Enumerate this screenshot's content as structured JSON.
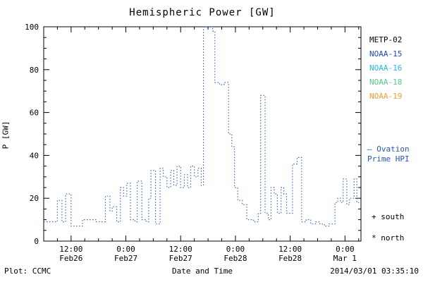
{
  "title": "Hemispheric Power [GW]",
  "ylabel": "P [GW]",
  "xlabel": "Date and Time",
  "footer": {
    "left": "Plot: CCMC",
    "right": "2014/03/01 03:35:10"
  },
  "legend": [
    {
      "label": "METP-02",
      "color": "#000000"
    },
    {
      "label": "NOAA-15",
      "color": "#2244cc"
    },
    {
      "label": "NOAA-16",
      "color": "#22bbee"
    },
    {
      "label": "NOAA-18",
      "color": "#55cc88"
    },
    {
      "label": "NOAA-19",
      "color": "#ff9933"
    }
  ],
  "ovation": {
    "line1": "— Ovation",
    "line2": "Prime HPI",
    "color": "#2255cc"
  },
  "markers": {
    "south": "+ south",
    "north": "* north"
  },
  "chart_data": {
    "type": "line",
    "step": true,
    "line_style": "dotted",
    "line_color": "#3a66cc",
    "title": "Hemispheric Power [GW]",
    "xlabel": "Date and Time",
    "ylabel": "P [GW]",
    "xlim": [
      6,
      75.5
    ],
    "ylim": [
      0,
      100
    ],
    "x_unit": "hours since Feb 26 00:00",
    "y_ticks": [
      0,
      20,
      40,
      60,
      80,
      100
    ],
    "x_ticks": [
      {
        "pos": 12,
        "line1": "12:00",
        "line2": "Feb26"
      },
      {
        "pos": 24,
        "line1": "0:00",
        "line2": "Feb27"
      },
      {
        "pos": 36,
        "line1": "12:00",
        "line2": "Feb27"
      },
      {
        "pos": 48,
        "line1": "0:00",
        "line2": "Feb28"
      },
      {
        "pos": 60,
        "line1": "12:00",
        "line2": "Feb28"
      },
      {
        "pos": 72,
        "line1": "0:00",
        "line2": "Mar 1"
      }
    ],
    "points": [
      [
        6,
        9
      ],
      [
        9,
        19
      ],
      [
        10,
        9
      ],
      [
        10.8,
        22
      ],
      [
        12,
        7
      ],
      [
        14.5,
        10
      ],
      [
        17.5,
        9
      ],
      [
        19.5,
        21
      ],
      [
        20.5,
        14
      ],
      [
        21,
        16
      ],
      [
        22,
        9
      ],
      [
        22.8,
        25
      ],
      [
        23.5,
        21
      ],
      [
        24.2,
        27
      ],
      [
        25,
        10
      ],
      [
        26,
        9
      ],
      [
        26.5,
        28
      ],
      [
        27.5,
        10
      ],
      [
        28.5,
        9
      ],
      [
        29,
        20
      ],
      [
        29.5,
        33
      ],
      [
        30.5,
        8
      ],
      [
        31.5,
        34
      ],
      [
        32.2,
        30
      ],
      [
        33,
        25
      ],
      [
        33.8,
        33
      ],
      [
        34.5,
        26
      ],
      [
        35.2,
        35
      ],
      [
        36,
        25
      ],
      [
        36.8,
        31
      ],
      [
        37.5,
        25
      ],
      [
        38.2,
        35
      ],
      [
        39,
        30
      ],
      [
        39.8,
        34
      ],
      [
        40.5,
        26
      ],
      [
        41,
        100
      ],
      [
        43,
        98
      ],
      [
        43.5,
        74
      ],
      [
        44.5,
        73
      ],
      [
        45.5,
        74
      ],
      [
        46.5,
        50
      ],
      [
        47.2,
        44
      ],
      [
        47.8,
        25
      ],
      [
        48.5,
        19
      ],
      [
        49.5,
        17
      ],
      [
        50.5,
        10
      ],
      [
        52,
        9
      ],
      [
        53,
        13
      ],
      [
        53.5,
        68
      ],
      [
        54.5,
        13
      ],
      [
        55.2,
        10
      ],
      [
        55.8,
        25
      ],
      [
        56.5,
        22
      ],
      [
        57.2,
        13
      ],
      [
        58,
        25
      ],
      [
        58.6,
        22
      ],
      [
        59.2,
        13
      ],
      [
        60.5,
        36
      ],
      [
        61.5,
        39
      ],
      [
        62.5,
        9
      ],
      [
        63.5,
        10
      ],
      [
        64.5,
        8
      ],
      [
        65.5,
        9
      ],
      [
        66.5,
        8
      ],
      [
        67.5,
        7
      ],
      [
        68.5,
        8
      ],
      [
        69.8,
        18
      ],
      [
        70.4,
        20
      ],
      [
        71,
        18
      ],
      [
        71.6,
        29
      ],
      [
        72.4,
        17
      ],
      [
        73,
        20
      ],
      [
        74,
        29
      ],
      [
        74.6,
        18
      ],
      [
        75.3,
        18
      ]
    ]
  }
}
